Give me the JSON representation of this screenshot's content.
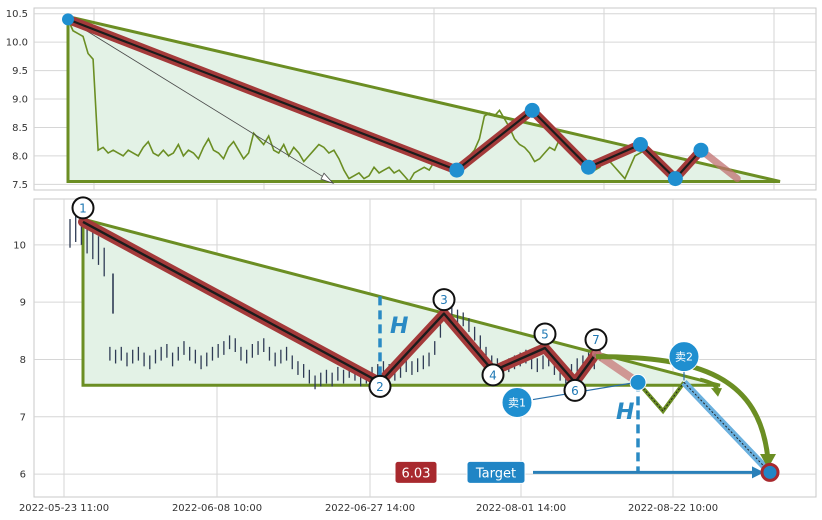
{
  "chart_data": [
    {
      "type": "line",
      "panel": "top",
      "ylim": [
        7.4,
        10.6
      ],
      "yticks": [
        "7.5",
        "8.0",
        "8.5",
        "9.0",
        "9.5",
        "10.0",
        "10.5"
      ],
      "grid": true,
      "series": [
        {
          "values": [
            10.4,
            10.2,
            10.15,
            10.1,
            9.8,
            9.7,
            8.1,
            8.15,
            8.05,
            8.1,
            8.05,
            8.0,
            8.1,
            8.05,
            8.0,
            8.15,
            8.25,
            8.05,
            8.0,
            8.1,
            8.0,
            8.05,
            8.2,
            8.0,
            8.1,
            8.05,
            7.95,
            8.15,
            8.3,
            8.1,
            8.05,
            7.95,
            8.15,
            8.25,
            8.1,
            7.95,
            8.05,
            8.4,
            8.3,
            8.2,
            8.35,
            8.1,
            8.05,
            8.2,
            8.0,
            8.15,
            8.05,
            7.9,
            8.0,
            8.1,
            8.2,
            8.15,
            8.05,
            8.1,
            7.95,
            7.75,
            7.6,
            7.65,
            7.7,
            7.6,
            7.65,
            7.8,
            7.7,
            7.75,
            7.8,
            7.7,
            7.75,
            7.65,
            7.55,
            7.7,
            7.75,
            7.8,
            7.75,
            7.9,
            7.8,
            7.85,
            7.8,
            7.75,
            7.85,
            7.9,
            8.0,
            8.1,
            8.3,
            8.7,
            8.75,
            8.7,
            8.8,
            8.65,
            8.5,
            8.3,
            8.2,
            8.15,
            8.05,
            7.9,
            7.95,
            8.05,
            8.15,
            8.1,
            8.3,
            8.15,
            8.1,
            8.05,
            8.0,
            7.9,
            7.85,
            7.75,
            7.8,
            7.95,
            7.9,
            7.8,
            7.7,
            7.6,
            7.8,
            8.0,
            8.05,
            8.1,
            8.0,
            8.05
          ]
        }
      ],
      "pattern_points": [
        {
          "x": 0,
          "y": 10.4
        },
        {
          "x": 54.6,
          "y": 7.75
        },
        {
          "x": 65.2,
          "y": 8.8
        },
        {
          "x": 73.1,
          "y": 7.8
        },
        {
          "x": 80.4,
          "y": 8.2
        },
        {
          "x": 85.3,
          "y": 7.6
        },
        {
          "x": 88.9,
          "y": 8.1
        }
      ],
      "pattern_projection": {
        "x": 94.0,
        "y": 7.6
      },
      "triangle": {
        "apex_x": 0,
        "top_y": 10.45,
        "bottom_y": 7.55,
        "end_x": 100
      }
    },
    {
      "type": "candlestick",
      "panel": "bottom",
      "ylim": [
        5.6,
        10.8
      ],
      "yticks": [
        "6",
        "7",
        "8",
        "9",
        "10"
      ],
      "grid": true,
      "x_tick_labels": [
        "2022-05-23 11:00",
        "2022-06-08 10:00",
        "2022-06-27 14:00",
        "2022-08-01 14:00",
        "2022-08-22 10:00"
      ],
      "candle_center": [
        10.2,
        10.3,
        10.25,
        10.1,
        10.0,
        9.9,
        9.7,
        8.1,
        8.05,
        8.1,
        8.0,
        8.05,
        8.1,
        8.0,
        7.95,
        8.05,
        8.1,
        8.15,
        8.0,
        8.1,
        8.2,
        8.1,
        8.05,
        7.95,
        8.0,
        8.1,
        8.15,
        8.2,
        8.3,
        8.25,
        8.1,
        8.05,
        8.15,
        8.2,
        8.25,
        8.1,
        8.0,
        8.05,
        8.1,
        7.95,
        7.85,
        7.8,
        7.7,
        7.6,
        7.65,
        7.7,
        7.65,
        7.75,
        7.7,
        7.8,
        7.75,
        7.65,
        7.7,
        7.75,
        7.8,
        7.85,
        7.8,
        7.75,
        7.8,
        7.9,
        7.85,
        7.9,
        7.95,
        8.0,
        8.2,
        8.5,
        8.75,
        8.8,
        8.75,
        8.7,
        8.6,
        8.45,
        8.3,
        8.1,
        7.95,
        7.9,
        7.85,
        7.9,
        7.95,
        8.0,
        8.05,
        7.95,
        7.9,
        7.95,
        8.0,
        7.85,
        7.75,
        7.7,
        7.8,
        7.9,
        7.95,
        8.0,
        7.95,
        8.1
      ],
      "pattern_labels": [
        "1",
        "2",
        "3",
        "4",
        "5",
        "6",
        "7"
      ],
      "pattern_points": [
        {
          "label": "1",
          "y": 10.4
        },
        {
          "label": "2",
          "y": 7.6
        },
        {
          "label": "3",
          "y": 8.8
        },
        {
          "label": "4",
          "y": 7.8
        },
        {
          "label": "5",
          "y": 8.2
        },
        {
          "label": "6",
          "y": 7.6
        },
        {
          "label": "7",
          "y": 8.1
        }
      ],
      "sell_points": [
        {
          "label": "卖1",
          "y": 7.6
        },
        {
          "label": "卖2",
          "y": 7.6
        }
      ],
      "target_value": "6.03",
      "target_label": "Target",
      "height_marker": "H"
    }
  ],
  "colors": {
    "triangle_line": "#6b8e23",
    "triangle_fill": "#e3f2e6",
    "zigzag_outer": "#a43a3a",
    "zigzag_inner": "#1c1c1c",
    "price_line": "#6b8e23",
    "candle": "#2f3b55",
    "marker_blue": "#1f8fd0",
    "target_badge_red": "#a8292e",
    "target_badge_blue": "#2185c5",
    "target_arrow": "#2a80b9"
  }
}
